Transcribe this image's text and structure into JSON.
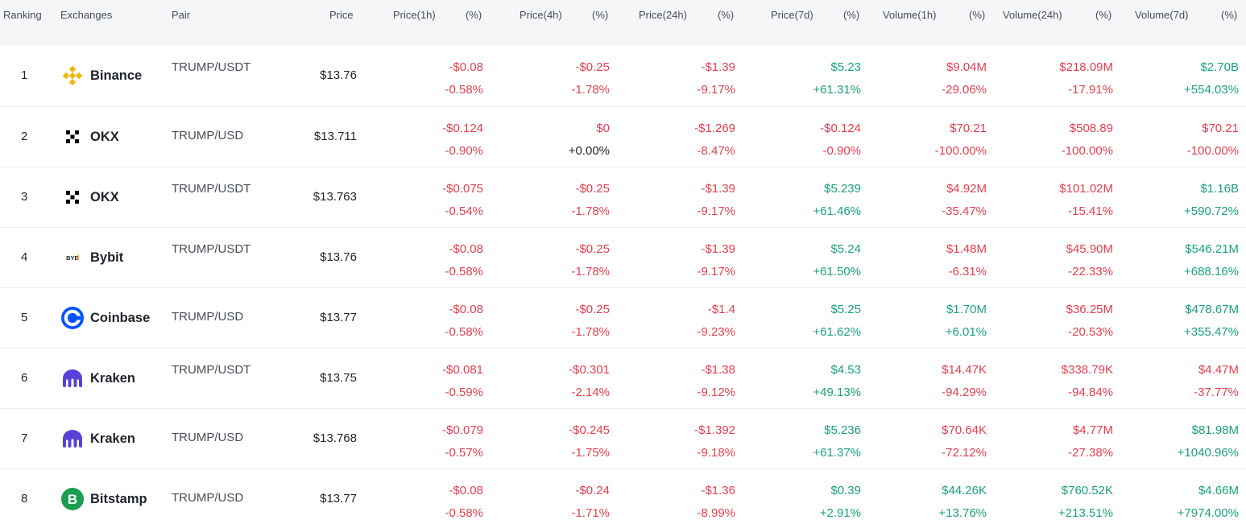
{
  "colors": {
    "negative": "#e23f4f",
    "positive": "#1ba27a",
    "header_bg": "#f5f6f8"
  },
  "headers": {
    "ranking": "Ranking",
    "exchanges": "Exchanges",
    "pair": "Pair",
    "price": "Price",
    "p1h": "Price(1h)",
    "p1h_pct": "(%)",
    "p4h": "Price(4h)",
    "p4h_pct": "(%)",
    "p24h": "Price(24h)",
    "p24h_pct": "(%)",
    "p7d": "Price(7d)",
    "p7d_pct": "(%)",
    "v1h": "Volume(1h)",
    "v1h_pct": "(%)",
    "v24h": "Volume(24h)",
    "v24h_pct": "(%)",
    "v7d": "Volume(7d)",
    "v7d_pct": "(%)"
  },
  "rows": [
    {
      "rank": "1",
      "logo": "binance-icon",
      "exchange": "Binance",
      "pair": "TRUMP/USDT",
      "price": "$13.76",
      "p1h": {
        "v": "-$0.08",
        "p": "-0.58%",
        "c": "neg"
      },
      "p4h": {
        "v": "-$0.25",
        "p": "-1.78%",
        "c": "neg"
      },
      "p24h": {
        "v": "-$1.39",
        "p": "-9.17%",
        "c": "neg"
      },
      "p7d": {
        "v": "$5.23",
        "p": "+61.31%",
        "c": "pos"
      },
      "v1h": {
        "v": "$9.04M",
        "p": "-29.06%",
        "c": "neg"
      },
      "v24h": {
        "v": "$218.09M",
        "p": "-17.91%",
        "c": "neg"
      },
      "v7d": {
        "v": "$2.70B",
        "p": "+554.03%",
        "c": "pos"
      }
    },
    {
      "rank": "2",
      "logo": "okx-icon",
      "exchange": "OKX",
      "pair": "TRUMP/USD",
      "price": "$13.711",
      "p1h": {
        "v": "-$0.124",
        "p": "-0.90%",
        "c": "neg"
      },
      "p4h": {
        "v": "$0",
        "p": "+0.00%",
        "c": "mixed"
      },
      "p24h": {
        "v": "-$1.269",
        "p": "-8.47%",
        "c": "neg"
      },
      "p7d": {
        "v": "-$0.124",
        "p": "-0.90%",
        "c": "neg"
      },
      "v1h": {
        "v": "$70.21",
        "p": "-100.00%",
        "c": "neg"
      },
      "v24h": {
        "v": "$508.89",
        "p": "-100.00%",
        "c": "neg"
      },
      "v7d": {
        "v": "$70.21",
        "p": "-100.00%",
        "c": "neg"
      }
    },
    {
      "rank": "3",
      "logo": "okx-icon",
      "exchange": "OKX",
      "pair": "TRUMP/USDT",
      "price": "$13.763",
      "p1h": {
        "v": "-$0.075",
        "p": "-0.54%",
        "c": "neg"
      },
      "p4h": {
        "v": "-$0.25",
        "p": "-1.78%",
        "c": "neg"
      },
      "p24h": {
        "v": "-$1.39",
        "p": "-9.17%",
        "c": "neg"
      },
      "p7d": {
        "v": "$5.239",
        "p": "+61.46%",
        "c": "pos"
      },
      "v1h": {
        "v": "$4.92M",
        "p": "-35.47%",
        "c": "neg"
      },
      "v24h": {
        "v": "$101.02M",
        "p": "-15.41%",
        "c": "neg"
      },
      "v7d": {
        "v": "$1.16B",
        "p": "+590.72%",
        "c": "pos"
      }
    },
    {
      "rank": "4",
      "logo": "bybit-icon",
      "exchange": "Bybit",
      "pair": "TRUMP/USDT",
      "price": "$13.76",
      "p1h": {
        "v": "-$0.08",
        "p": "-0.58%",
        "c": "neg"
      },
      "p4h": {
        "v": "-$0.25",
        "p": "-1.78%",
        "c": "neg"
      },
      "p24h": {
        "v": "-$1.39",
        "p": "-9.17%",
        "c": "neg"
      },
      "p7d": {
        "v": "$5.24",
        "p": "+61.50%",
        "c": "pos"
      },
      "v1h": {
        "v": "$1.48M",
        "p": "-6.31%",
        "c": "neg"
      },
      "v24h": {
        "v": "$45.90M",
        "p": "-22.33%",
        "c": "neg"
      },
      "v7d": {
        "v": "$546.21M",
        "p": "+688.16%",
        "c": "pos"
      }
    },
    {
      "rank": "5",
      "logo": "coinbase-icon",
      "exchange": "Coinbase",
      "pair": "TRUMP/USD",
      "price": "$13.77",
      "p1h": {
        "v": "-$0.08",
        "p": "-0.58%",
        "c": "neg"
      },
      "p4h": {
        "v": "-$0.25",
        "p": "-1.78%",
        "c": "neg"
      },
      "p24h": {
        "v": "-$1.4",
        "p": "-9.23%",
        "c": "neg"
      },
      "p7d": {
        "v": "$5.25",
        "p": "+61.62%",
        "c": "pos"
      },
      "v1h": {
        "v": "$1.70M",
        "p": "+6.01%",
        "c": "pos"
      },
      "v24h": {
        "v": "$36.25M",
        "p": "-20.53%",
        "c": "neg"
      },
      "v7d": {
        "v": "$478.67M",
        "p": "+355.47%",
        "c": "pos"
      }
    },
    {
      "rank": "6",
      "logo": "kraken-icon",
      "exchange": "Kraken",
      "pair": "TRUMP/USDT",
      "price": "$13.75",
      "p1h": {
        "v": "-$0.081",
        "p": "-0.59%",
        "c": "neg"
      },
      "p4h": {
        "v": "-$0.301",
        "p": "-2.14%",
        "c": "neg"
      },
      "p24h": {
        "v": "-$1.38",
        "p": "-9.12%",
        "c": "neg"
      },
      "p7d": {
        "v": "$4.53",
        "p": "+49.13%",
        "c": "pos"
      },
      "v1h": {
        "v": "$14.47K",
        "p": "-94.29%",
        "c": "neg"
      },
      "v24h": {
        "v": "$338.79K",
        "p": "-94.84%",
        "c": "neg"
      },
      "v7d": {
        "v": "$4.47M",
        "p": "-37.77%",
        "c": "neg"
      }
    },
    {
      "rank": "7",
      "logo": "kraken-icon",
      "exchange": "Kraken",
      "pair": "TRUMP/USD",
      "price": "$13.768",
      "p1h": {
        "v": "-$0.079",
        "p": "-0.57%",
        "c": "neg"
      },
      "p4h": {
        "v": "-$0.245",
        "p": "-1.75%",
        "c": "neg"
      },
      "p24h": {
        "v": "-$1.392",
        "p": "-9.18%",
        "c": "neg"
      },
      "p7d": {
        "v": "$5.236",
        "p": "+61.37%",
        "c": "pos"
      },
      "v1h": {
        "v": "$70.64K",
        "p": "-72.12%",
        "c": "neg"
      },
      "v24h": {
        "v": "$4.77M",
        "p": "-27.38%",
        "c": "neg"
      },
      "v7d": {
        "v": "$81.98M",
        "p": "+1040.96%",
        "c": "pos"
      }
    },
    {
      "rank": "8",
      "logo": "bitstamp-icon",
      "exchange": "Bitstamp",
      "pair": "TRUMP/USD",
      "price": "$13.77",
      "p1h": {
        "v": "-$0.08",
        "p": "-0.58%",
        "c": "neg"
      },
      "p4h": {
        "v": "-$0.24",
        "p": "-1.71%",
        "c": "neg"
      },
      "p24h": {
        "v": "-$1.36",
        "p": "-8.99%",
        "c": "neg"
      },
      "p7d": {
        "v": "$0.39",
        "p": "+2.91%",
        "c": "pos"
      },
      "v1h": {
        "v": "$44.26K",
        "p": "+13.76%",
        "c": "pos"
      },
      "v24h": {
        "v": "$760.52K",
        "p": "+213.51%",
        "c": "pos"
      },
      "v7d": {
        "v": "$4.66M",
        "p": "+7974.00%",
        "c": "pos"
      }
    }
  ]
}
